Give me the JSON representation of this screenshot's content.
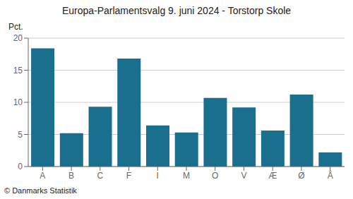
{
  "chart_data": {
    "type": "bar",
    "title": "Europa-Parlamentsvalg 9. juni 2024 - Torstorp Skole",
    "categories": [
      "A",
      "B",
      "C",
      "F",
      "I",
      "M",
      "O",
      "V",
      "Æ",
      "Ø",
      "Å"
    ],
    "values": [
      18.4,
      5.2,
      9.3,
      16.8,
      6.4,
      5.3,
      10.7,
      9.2,
      5.6,
      11.2,
      2.2
    ],
    "color": "#1a6e8e",
    "ylim": [
      0,
      20
    ],
    "yticks": [
      0,
      5,
      10,
      15,
      20
    ],
    "grid": true,
    "ylabel": "Pct.",
    "annotations": [
      "© Danmarks Statistik"
    ]
  }
}
